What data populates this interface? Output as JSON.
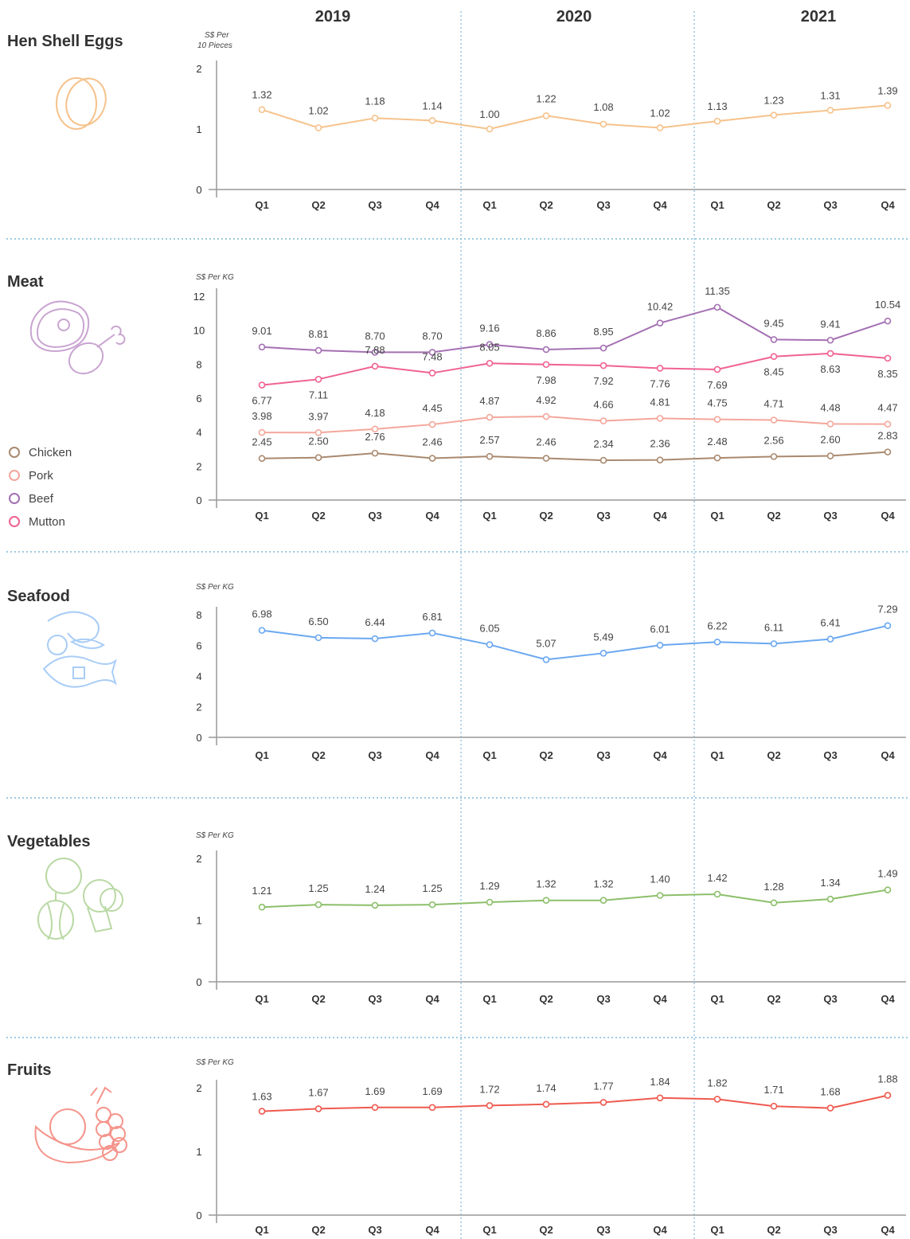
{
  "years": [
    "2019",
    "2020",
    "2021"
  ],
  "quarters": [
    "Q1",
    "Q2",
    "Q3",
    "Q4",
    "Q1",
    "Q2",
    "Q3",
    "Q4",
    "Q1",
    "Q2",
    "Q3",
    "Q4"
  ],
  "colors": {
    "divider": "#7fb8d8",
    "axis": "#999999",
    "label": "#444444",
    "eggs": "#f6c28b",
    "chicken": "#a9896e",
    "pork": "#f4a79b",
    "beef": "#a470b3",
    "mutton": "#f06292",
    "seafood": "#6aa8f0",
    "vegetables": "#8cbf6a",
    "fruits": "#ee5a4f"
  },
  "chart_data": [
    {
      "id": "eggs",
      "type": "line",
      "title": "Hen Shell Eggs",
      "ylabel": "S$ Per 10 Pieces",
      "ylim": [
        0,
        2
      ],
      "yticks": [
        0,
        1,
        2
      ],
      "icon": "egg-icon",
      "series": [
        {
          "key": "eggs",
          "values": [
            1.32,
            1.02,
            1.18,
            1.14,
            1.0,
            1.22,
            1.08,
            1.02,
            1.13,
            1.23,
            1.31,
            1.39
          ]
        }
      ]
    },
    {
      "id": "meat",
      "type": "line",
      "title": "Meat",
      "ylabel": "S$ Per KG",
      "ylim": [
        0,
        12
      ],
      "yticks": [
        0,
        2,
        4,
        6,
        8,
        10,
        12
      ],
      "icon": "meat-icon",
      "legend": [
        "Chicken",
        "Pork",
        "Beef",
        "Mutton"
      ],
      "series": [
        {
          "name": "Chicken",
          "key": "chicken",
          "values": [
            2.45,
            2.5,
            2.76,
            2.46,
            2.57,
            2.46,
            2.34,
            2.36,
            2.48,
            2.56,
            2.6,
            2.83
          ]
        },
        {
          "name": "Pork",
          "key": "pork",
          "values": [
            3.98,
            3.97,
            4.18,
            4.45,
            4.87,
            4.92,
            4.66,
            4.81,
            4.75,
            4.71,
            4.48,
            4.47
          ]
        },
        {
          "name": "Beef",
          "key": "beef",
          "values": [
            9.01,
            8.81,
            8.7,
            8.7,
            9.16,
            8.86,
            8.95,
            10.42,
            11.35,
            9.45,
            9.41,
            10.54
          ]
        },
        {
          "name": "Mutton",
          "key": "mutton",
          "values": [
            6.77,
            7.11,
            7.88,
            7.48,
            8.05,
            7.98,
            7.92,
            7.76,
            7.69,
            8.45,
            8.63,
            8.35
          ]
        }
      ]
    },
    {
      "id": "seafood",
      "type": "line",
      "title": "Seafood",
      "ylabel": "S$ Per KG",
      "ylim": [
        0,
        8
      ],
      "yticks": [
        0,
        2,
        4,
        6,
        8
      ],
      "icon": "seafood-icon",
      "series": [
        {
          "key": "seafood",
          "values": [
            6.98,
            6.5,
            6.44,
            6.81,
            6.05,
            5.07,
            5.49,
            6.01,
            6.22,
            6.11,
            6.41,
            7.29
          ]
        }
      ]
    },
    {
      "id": "vegetables",
      "type": "line",
      "title": "Vegetables",
      "ylabel": "S$ Per KG",
      "ylim": [
        0,
        2
      ],
      "yticks": [
        0,
        1,
        2
      ],
      "icon": "vegetables-icon",
      "series": [
        {
          "key": "vegetables",
          "values": [
            1.21,
            1.25,
            1.24,
            1.25,
            1.29,
            1.32,
            1.32,
            1.4,
            1.42,
            1.28,
            1.34,
            1.49
          ]
        }
      ]
    },
    {
      "id": "fruits",
      "type": "line",
      "title": "Fruits",
      "ylabel": "S$ Per KG",
      "ylim": [
        0,
        2
      ],
      "yticks": [
        0,
        1,
        2
      ],
      "icon": "fruits-icon",
      "series": [
        {
          "key": "fruits",
          "values": [
            1.63,
            1.67,
            1.69,
            1.69,
            1.72,
            1.74,
            1.77,
            1.84,
            1.82,
            1.71,
            1.68,
            1.88
          ]
        }
      ]
    }
  ]
}
